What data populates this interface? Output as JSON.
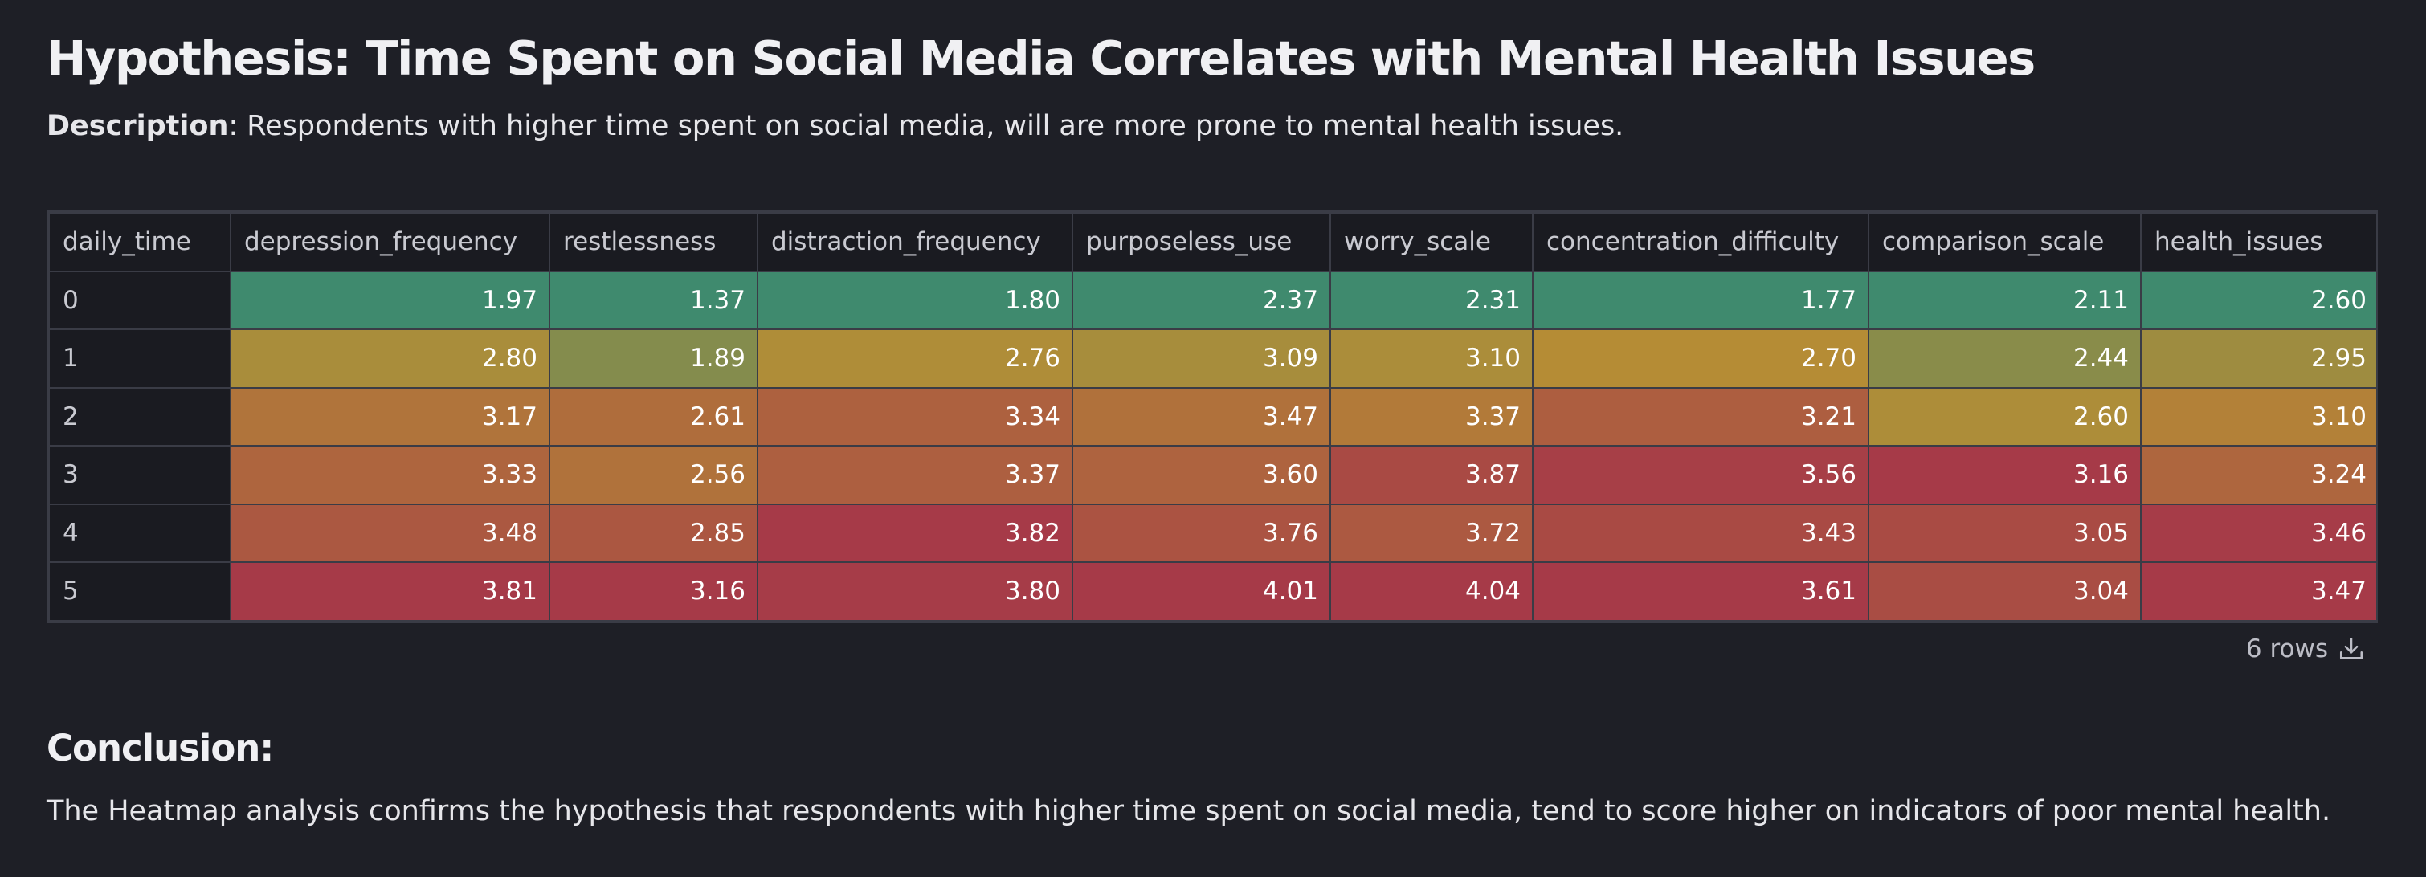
{
  "header": {
    "title": "Hypothesis: Time Spent on Social Media Correlates with Mental Health Issues",
    "description_label": "Description",
    "description_text": ": Respondents with higher time spent on social media, will are more prone to mental health issues."
  },
  "table": {
    "index_header": "daily_time",
    "columns": [
      "depression_frequency",
      "restlessness",
      "distraction_frequency",
      "purposeless_use",
      "worry_scale",
      "concentration_difficulty",
      "comparison_scale",
      "health_issues"
    ],
    "rows": [
      {
        "index": "0",
        "values": [
          "1.97",
          "1.37",
          "1.80",
          "2.37",
          "2.31",
          "1.77",
          "2.11",
          "2.60"
        ]
      },
      {
        "index": "1",
        "values": [
          "2.80",
          "1.89",
          "2.76",
          "3.09",
          "3.10",
          "2.70",
          "2.44",
          "2.95"
        ]
      },
      {
        "index": "2",
        "values": [
          "3.17",
          "2.61",
          "3.34",
          "3.47",
          "3.37",
          "3.21",
          "2.60",
          "3.10"
        ]
      },
      {
        "index": "3",
        "values": [
          "3.33",
          "2.56",
          "3.37",
          "3.60",
          "3.87",
          "3.56",
          "3.16",
          "3.24"
        ]
      },
      {
        "index": "4",
        "values": [
          "3.48",
          "2.85",
          "3.82",
          "3.76",
          "3.72",
          "3.43",
          "3.05",
          "3.46"
        ]
      },
      {
        "index": "5",
        "values": [
          "3.81",
          "3.16",
          "3.80",
          "4.01",
          "4.04",
          "3.61",
          "3.04",
          "3.47"
        ]
      }
    ],
    "row_count_label": "6 rows",
    "download_icon": "download-icon"
  },
  "conclusion": {
    "title": "Conclusion:",
    "text": "The Heatmap analysis confirms the hypothesis that respondents with higher time spent on social media, tend to score higher on indicators of poor mental health."
  },
  "colors": {
    "background": "#1e1f26",
    "heat_low": "#3f8a6e",
    "heat_mid": "#b58d35",
    "heat_high": "#a63a48"
  }
}
